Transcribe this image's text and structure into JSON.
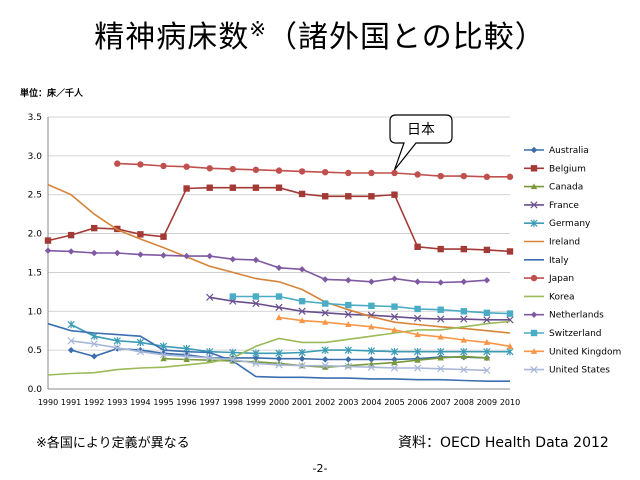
{
  "slide": {
    "title_main": "精神病床数",
    "title_mark": "※",
    "title_tail": "（諸外国との比較）",
    "unit_label": "単位：床／千人",
    "footnote": "※各国により定義が異なる",
    "source": "資料：OECD Health Data 2012",
    "page_number": "-2-"
  },
  "chart_data": {
    "type": "line",
    "title": "",
    "xlabel": "",
    "ylabel": "",
    "ylim": [
      0,
      3.5
    ],
    "yticks": [
      "0.0",
      "0.5",
      "1.0",
      "1.5",
      "2.0",
      "2.5",
      "3.0",
      "3.5"
    ],
    "x": [
      1990,
      1991,
      1992,
      1993,
      1994,
      1995,
      1996,
      1997,
      1998,
      1999,
      2000,
      2001,
      2002,
      2003,
      2004,
      2005,
      2006,
      2007,
      2008,
      2009,
      2010
    ],
    "grid": true,
    "legend_position": "right",
    "annotation": {
      "text": "日本",
      "points_to": {
        "series": "Japan",
        "x": 2005
      }
    },
    "series": [
      {
        "name": "Australia",
        "color": "#3c6eac",
        "marker": "diamond",
        "values": [
          null,
          0.5,
          0.42,
          0.52,
          0.5,
          0.46,
          0.44,
          0.4,
          0.4,
          0.4,
          0.39,
          0.39,
          0.38,
          0.38,
          0.38,
          0.38,
          0.39,
          0.41,
          0.41,
          0.4,
          null
        ]
      },
      {
        "name": "Belgium",
        "color": "#a33a36",
        "marker": "square",
        "values": [
          1.91,
          1.98,
          2.07,
          2.06,
          1.99,
          1.96,
          2.58,
          2.59,
          2.59,
          2.59,
          2.59,
          2.51,
          2.48,
          2.48,
          2.48,
          2.5,
          1.83,
          1.8,
          1.8,
          1.79,
          1.77
        ]
      },
      {
        "name": "Canada",
        "color": "#78983a",
        "marker": "triangle",
        "values": [
          null,
          null,
          null,
          null,
          null,
          0.39,
          0.38,
          0.37,
          0.36,
          0.35,
          0.33,
          0.3,
          0.28,
          0.3,
          0.32,
          0.34,
          0.37,
          0.4,
          0.42,
          0.4,
          null
        ]
      },
      {
        "name": "France",
        "color": "#6a4f8f",
        "marker": "x",
        "values": [
          null,
          null,
          null,
          null,
          null,
          null,
          null,
          1.18,
          1.13,
          1.1,
          1.05,
          1.0,
          0.98,
          0.96,
          0.95,
          0.93,
          0.91,
          0.9,
          0.9,
          0.89,
          0.89
        ]
      },
      {
        "name": "Germany",
        "color": "#3d9cb5",
        "marker": "star",
        "values": [
          null,
          0.83,
          0.68,
          0.62,
          0.6,
          0.55,
          0.52,
          0.48,
          0.47,
          0.46,
          0.46,
          0.47,
          0.5,
          0.5,
          0.49,
          0.48,
          0.48,
          0.48,
          0.48,
          0.48,
          0.48
        ]
      },
      {
        "name": "Ireland",
        "color": "#d7843a",
        "marker": "none",
        "values": [
          2.63,
          2.5,
          2.25,
          2.05,
          1.93,
          1.82,
          1.7,
          1.58,
          1.5,
          1.42,
          1.38,
          1.28,
          1.12,
          1.02,
          0.93,
          0.86,
          0.83,
          0.8,
          0.78,
          0.75,
          0.72
        ]
      },
      {
        "name": "Italy",
        "color": "#3b70b0",
        "marker": "none",
        "values": [
          0.84,
          0.75,
          0.72,
          0.7,
          0.68,
          0.5,
          0.48,
          0.47,
          0.36,
          0.16,
          0.15,
          0.15,
          0.14,
          0.14,
          0.13,
          0.13,
          0.12,
          0.12,
          0.11,
          0.1,
          0.1
        ]
      },
      {
        "name": "Japan",
        "color": "#c0504d",
        "marker": "circle",
        "values": [
          null,
          null,
          null,
          2.9,
          2.89,
          2.87,
          2.86,
          2.84,
          2.83,
          2.82,
          2.81,
          2.8,
          2.79,
          2.78,
          2.78,
          2.78,
          2.76,
          2.74,
          2.74,
          2.73,
          2.73
        ]
      },
      {
        "name": "Korea",
        "color": "#9bbb59",
        "marker": "none",
        "values": [
          0.18,
          0.2,
          0.21,
          0.25,
          0.27,
          0.28,
          0.31,
          0.34,
          0.4,
          0.55,
          0.65,
          0.6,
          0.6,
          0.64,
          0.68,
          0.72,
          0.76,
          0.76,
          0.8,
          0.84,
          0.87
        ]
      },
      {
        "name": "Netherlands",
        "color": "#7f5aa2",
        "marker": "diamond",
        "values": [
          1.78,
          1.77,
          1.75,
          1.75,
          1.73,
          1.72,
          1.71,
          1.71,
          1.67,
          1.66,
          1.56,
          1.54,
          1.41,
          1.4,
          1.38,
          1.42,
          1.38,
          1.37,
          1.38,
          1.4,
          null
        ]
      },
      {
        "name": "Switzerland",
        "color": "#4bacc6",
        "marker": "square",
        "values": [
          null,
          null,
          null,
          null,
          null,
          null,
          null,
          null,
          1.19,
          1.19,
          1.19,
          1.13,
          1.1,
          1.08,
          1.07,
          1.06,
          1.03,
          1.02,
          1.0,
          0.98,
          0.97
        ]
      },
      {
        "name": "United Kingdom",
        "color": "#f79646",
        "marker": "triangle",
        "values": [
          null,
          null,
          null,
          null,
          null,
          null,
          null,
          null,
          null,
          null,
          0.92,
          0.88,
          0.86,
          0.83,
          0.8,
          0.76,
          0.7,
          0.67,
          0.63,
          0.6,
          0.55
        ]
      },
      {
        "name": "United States",
        "color": "#a9b8d8",
        "marker": "x",
        "values": [
          null,
          0.62,
          0.58,
          0.53,
          0.48,
          0.44,
          0.42,
          0.4,
          0.38,
          0.33,
          0.31,
          0.3,
          0.3,
          0.29,
          0.28,
          0.27,
          0.27,
          0.26,
          0.25,
          0.24,
          null
        ]
      }
    ]
  }
}
